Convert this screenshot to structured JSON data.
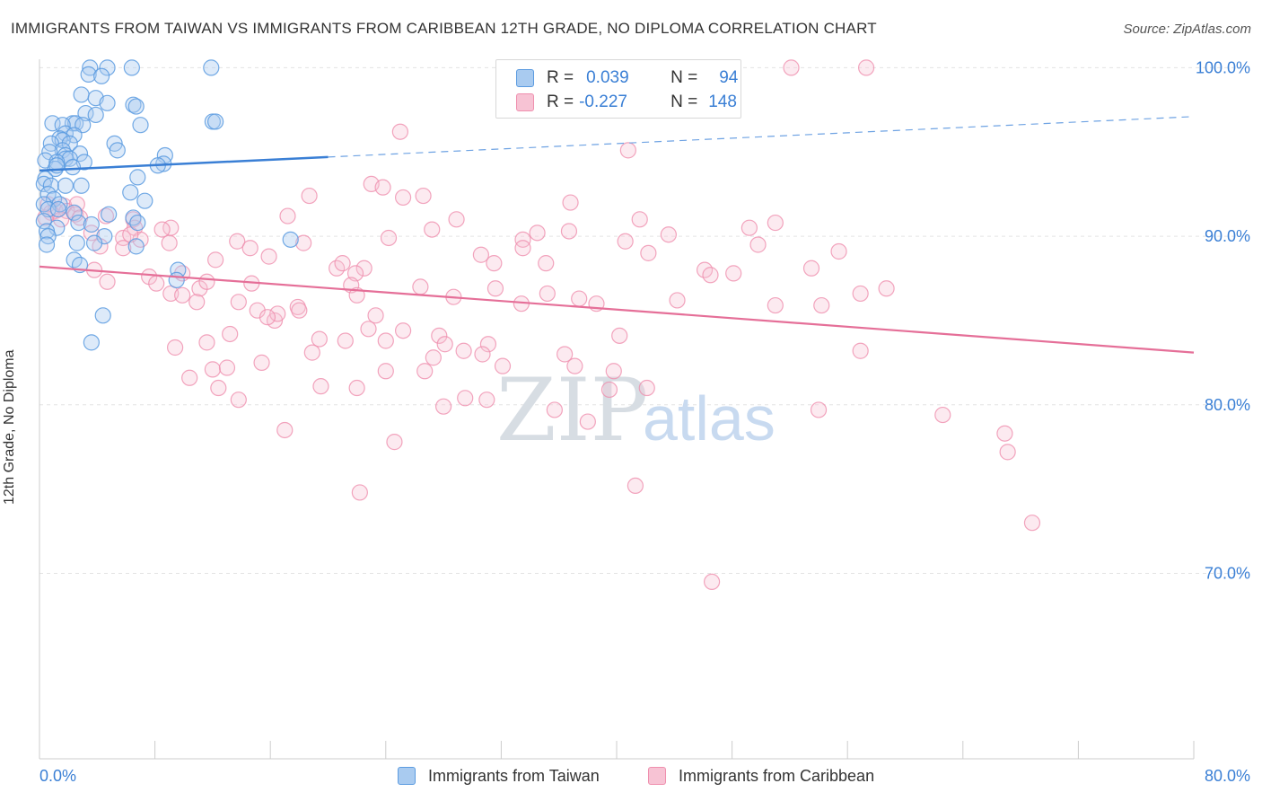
{
  "header": {
    "title": "IMMIGRANTS FROM TAIWAN VS IMMIGRANTS FROM CARIBBEAN 12TH GRADE, NO DIPLOMA CORRELATION CHART",
    "source": "Source: ZipAtlas.com"
  },
  "stats_legend": {
    "taiwan": {
      "r_label": "R =",
      "r_value": "0.039",
      "n_label": "N =",
      "n_value": "94"
    },
    "caribbean": {
      "r_label": "R =",
      "r_value": "-0.227",
      "n_label": "N =",
      "n_value": "148"
    }
  },
  "watermark": {
    "zip": "ZIP",
    "atlas": "atlas"
  },
  "bottom_legend": {
    "taiwan": "Immigrants from Taiwan",
    "caribbean": "Immigrants from Caribbean"
  },
  "colors": {
    "taiwan": "#5b9be0",
    "taiwan_fill": "#a9cbf0",
    "caribbean": "#ef8fae",
    "caribbean_fill": "#f7c3d4",
    "tick_label": "#3a7fd5"
  },
  "chart_data": {
    "type": "scatter",
    "xlabel": "",
    "ylabel": "12th Grade, No Diploma",
    "xlim": [
      0,
      80
    ],
    "ylim": [
      59,
      100.5
    ],
    "x_tick_labels": [
      "0.0%",
      "80.0%"
    ],
    "y_ticks": [
      70,
      80,
      90,
      100
    ],
    "y_tick_labels": [
      "70.0%",
      "80.0%",
      "90.0%",
      "100.0%"
    ],
    "grid": true,
    "series": [
      {
        "name": "Immigrants from Taiwan",
        "trend": {
          "x0": 0,
          "y0": 93.9,
          "x1": 20,
          "y1": 94.7,
          "dash_to_x": 80,
          "dash_to_y": 97.1
        },
        "points": [
          [
            3.5,
            100
          ],
          [
            4.7,
            100
          ],
          [
            6.4,
            100
          ],
          [
            11.9,
            100
          ],
          [
            3.4,
            99.6
          ],
          [
            4.3,
            99.5
          ],
          [
            2.9,
            98.4
          ],
          [
            3.9,
            98.2
          ],
          [
            4.7,
            97.9
          ],
          [
            6.5,
            97.8
          ],
          [
            6.7,
            97.7
          ],
          [
            3.2,
            97.3
          ],
          [
            3.9,
            97.2
          ],
          [
            0.9,
            96.7
          ],
          [
            2.3,
            96.7
          ],
          [
            2.5,
            96.7
          ],
          [
            1.6,
            96.6
          ],
          [
            3.0,
            96.6
          ],
          [
            7.0,
            96.6
          ],
          [
            12.0,
            96.8
          ],
          [
            12.2,
            96.8
          ],
          [
            1.8,
            96.1
          ],
          [
            2.4,
            96.0
          ],
          [
            1.4,
            95.8
          ],
          [
            1.6,
            95.7
          ],
          [
            2.1,
            95.5
          ],
          [
            0.8,
            95.5
          ],
          [
            5.2,
            95.5
          ],
          [
            1.6,
            95.1
          ],
          [
            5.4,
            95.1
          ],
          [
            0.7,
            95.0
          ],
          [
            1.8,
            94.8
          ],
          [
            2.8,
            94.9
          ],
          [
            1.8,
            94.6
          ],
          [
            2.1,
            94.6
          ],
          [
            8.7,
            94.8
          ],
          [
            0.4,
            94.5
          ],
          [
            1.2,
            94.4
          ],
          [
            3.1,
            94.4
          ],
          [
            8.6,
            94.3
          ],
          [
            8.2,
            94.2
          ],
          [
            1.1,
            94.0
          ],
          [
            2.3,
            94.1
          ],
          [
            1.2,
            94.2
          ],
          [
            0.4,
            93.4
          ],
          [
            6.8,
            93.5
          ],
          [
            0.3,
            93.1
          ],
          [
            0.8,
            93.0
          ],
          [
            1.8,
            93.0
          ],
          [
            2.9,
            93.0
          ],
          [
            0.6,
            92.5
          ],
          [
            6.3,
            92.6
          ],
          [
            1.0,
            92.2
          ],
          [
            7.3,
            92.1
          ],
          [
            0.3,
            91.9
          ],
          [
            1.4,
            91.9
          ],
          [
            0.6,
            91.6
          ],
          [
            1.3,
            91.6
          ],
          [
            2.4,
            91.4
          ],
          [
            4.8,
            91.3
          ],
          [
            6.5,
            91.1
          ],
          [
            0.3,
            90.9
          ],
          [
            2.7,
            90.8
          ],
          [
            3.6,
            90.7
          ],
          [
            6.8,
            90.8
          ],
          [
            1.2,
            90.5
          ],
          [
            0.5,
            90.3
          ],
          [
            0.6,
            90.0
          ],
          [
            4.5,
            90.0
          ],
          [
            0.5,
            89.5
          ],
          [
            2.6,
            89.6
          ],
          [
            3.8,
            89.6
          ],
          [
            6.7,
            89.4
          ],
          [
            17.4,
            89.8
          ],
          [
            2.4,
            88.6
          ],
          [
            2.8,
            88.3
          ],
          [
            9.6,
            88.0
          ],
          [
            9.5,
            87.4
          ],
          [
            4.4,
            85.3
          ],
          [
            3.6,
            83.7
          ]
        ]
      },
      {
        "name": "Immigrants from Caribbean",
        "trend": {
          "x0": 0,
          "y0": 88.2,
          "x1": 80,
          "y1": 83.1
        },
        "points": [
          [
            52.1,
            100
          ],
          [
            57.3,
            100
          ],
          [
            25.0,
            96.2
          ],
          [
            40.8,
            95.1
          ],
          [
            23.0,
            93.1
          ],
          [
            23.8,
            92.9
          ],
          [
            18.7,
            92.4
          ],
          [
            25.2,
            92.3
          ],
          [
            26.6,
            92.4
          ],
          [
            36.8,
            92.0
          ],
          [
            0.6,
            91.9
          ],
          [
            1.7,
            91.8
          ],
          [
            2.6,
            91.9
          ],
          [
            1.1,
            91.5
          ],
          [
            0.8,
            91.4
          ],
          [
            1.9,
            91.5
          ],
          [
            2.5,
            91.3
          ],
          [
            0.4,
            91.1
          ],
          [
            2.8,
            91.1
          ],
          [
            1.5,
            91.0
          ],
          [
            4.6,
            91.2
          ],
          [
            6.5,
            91.0
          ],
          [
            17.2,
            91.2
          ],
          [
            28.9,
            91.0
          ],
          [
            41.6,
            91.0
          ],
          [
            6.6,
            90.5
          ],
          [
            9.1,
            90.5
          ],
          [
            8.5,
            90.4
          ],
          [
            27.2,
            90.4
          ],
          [
            36.7,
            90.3
          ],
          [
            34.5,
            90.2
          ],
          [
            49.2,
            90.5
          ],
          [
            51.0,
            90.8
          ],
          [
            3.6,
            90.2
          ],
          [
            5.8,
            89.9
          ],
          [
            7.0,
            89.8
          ],
          [
            6.3,
            90.1
          ],
          [
            9.0,
            89.6
          ],
          [
            13.7,
            89.7
          ],
          [
            18.3,
            89.6
          ],
          [
            24.2,
            89.9
          ],
          [
            33.5,
            89.8
          ],
          [
            40.6,
            89.7
          ],
          [
            43.6,
            90.1
          ],
          [
            49.8,
            89.5
          ],
          [
            4.2,
            89.4
          ],
          [
            5.8,
            89.3
          ],
          [
            14.6,
            89.3
          ],
          [
            15.9,
            88.8
          ],
          [
            30.6,
            88.9
          ],
          [
            33.5,
            89.3
          ],
          [
            42.2,
            89.0
          ],
          [
            12.2,
            88.6
          ],
          [
            20.6,
            88.1
          ],
          [
            21.0,
            88.4
          ],
          [
            22.5,
            88.1
          ],
          [
            31.5,
            88.4
          ],
          [
            35.1,
            88.4
          ],
          [
            3.8,
            88.0
          ],
          [
            7.6,
            87.6
          ],
          [
            9.9,
            87.8
          ],
          [
            21.9,
            87.8
          ],
          [
            46.1,
            88.0
          ],
          [
            53.5,
            88.1
          ],
          [
            55.4,
            89.1
          ],
          [
            4.7,
            87.3
          ],
          [
            8.1,
            87.2
          ],
          [
            11.1,
            86.9
          ],
          [
            11.6,
            87.3
          ],
          [
            14.7,
            87.2
          ],
          [
            21.6,
            87.1
          ],
          [
            26.4,
            87.0
          ],
          [
            31.6,
            86.9
          ],
          [
            46.5,
            87.7
          ],
          [
            48.1,
            87.8
          ],
          [
            58.7,
            86.9
          ],
          [
            9.1,
            86.6
          ],
          [
            9.9,
            86.5
          ],
          [
            10.9,
            86.1
          ],
          [
            13.8,
            86.1
          ],
          [
            17.9,
            85.8
          ],
          [
            22.0,
            86.5
          ],
          [
            28.7,
            86.4
          ],
          [
            33.4,
            86.0
          ],
          [
            35.2,
            86.6
          ],
          [
            37.4,
            86.3
          ],
          [
            38.6,
            86.0
          ],
          [
            44.2,
            86.2
          ],
          [
            51.0,
            85.9
          ],
          [
            56.9,
            86.6
          ],
          [
            15.1,
            85.6
          ],
          [
            16.3,
            85.0
          ],
          [
            16.5,
            85.4
          ],
          [
            18.0,
            85.6
          ],
          [
            23.3,
            85.3
          ],
          [
            15.8,
            85.2
          ],
          [
            54.2,
            85.9
          ],
          [
            22.8,
            84.5
          ],
          [
            25.2,
            84.4
          ],
          [
            27.7,
            84.1
          ],
          [
            28.1,
            83.6
          ],
          [
            29.4,
            83.2
          ],
          [
            31.1,
            83.6
          ],
          [
            24.0,
            83.8
          ],
          [
            19.4,
            83.9
          ],
          [
            9.4,
            83.4
          ],
          [
            11.6,
            83.7
          ],
          [
            13.2,
            84.2
          ],
          [
            40.2,
            84.1
          ],
          [
            56.9,
            83.2
          ],
          [
            18.9,
            83.1
          ],
          [
            27.3,
            82.8
          ],
          [
            30.7,
            83.0
          ],
          [
            32.1,
            82.3
          ],
          [
            21.2,
            83.8
          ],
          [
            36.4,
            83.0
          ],
          [
            37.1,
            82.3
          ],
          [
            39.8,
            82.0
          ],
          [
            15.4,
            82.5
          ],
          [
            12.0,
            82.1
          ],
          [
            13.0,
            82.2
          ],
          [
            10.4,
            81.6
          ],
          [
            12.4,
            81.0
          ],
          [
            19.5,
            81.1
          ],
          [
            22.0,
            81.0
          ],
          [
            24.0,
            82.0
          ],
          [
            26.7,
            82.0
          ],
          [
            39.5,
            80.9
          ],
          [
            28.0,
            79.9
          ],
          [
            29.5,
            80.4
          ],
          [
            31.0,
            80.3
          ],
          [
            35.7,
            79.7
          ],
          [
            42.1,
            81.0
          ],
          [
            54.0,
            79.7
          ],
          [
            62.6,
            79.4
          ],
          [
            66.9,
            78.3
          ],
          [
            67.1,
            77.2
          ],
          [
            17.0,
            78.5
          ],
          [
            24.6,
            77.8
          ],
          [
            13.8,
            80.3
          ],
          [
            38.0,
            79.0
          ],
          [
            41.3,
            75.2
          ],
          [
            22.2,
            74.8
          ],
          [
            68.8,
            73.0
          ],
          [
            46.6,
            69.5
          ]
        ]
      }
    ]
  }
}
